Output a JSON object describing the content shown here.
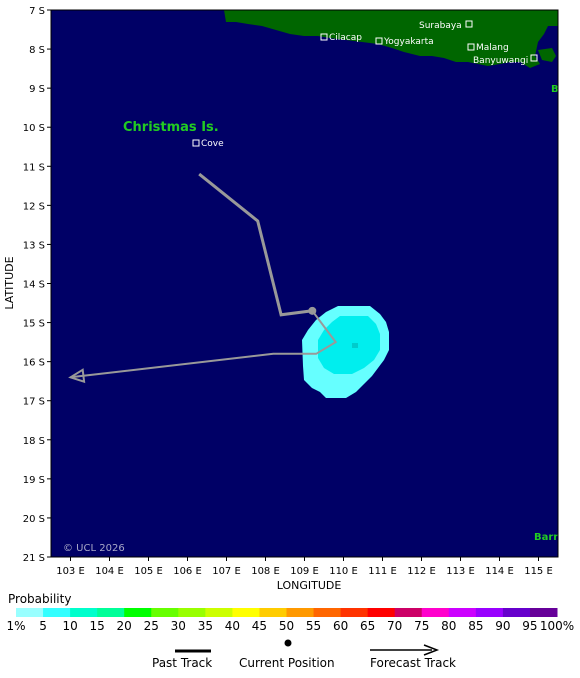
{
  "map": {
    "background_color": "#000066",
    "land_color": "#006600",
    "lon_range": [
      102.5,
      115.5
    ],
    "lat_range": [
      7,
      21
    ],
    "lon_ticks": [
      "103 E",
      "104 E",
      "105 E",
      "106 E",
      "107 E",
      "108 E",
      "109 E",
      "110 E",
      "111 E",
      "112 E",
      "113 E",
      "114 E",
      "115 E"
    ],
    "lat_ticks": [
      "7 S",
      "8 S",
      "9 S",
      "10 S",
      "11 S",
      "12 S",
      "13 S",
      "14 S",
      "15 S",
      "16 S",
      "17 S",
      "18 S",
      "19 S",
      "20 S",
      "21 S"
    ],
    "xlabel": "LONGITUDE",
    "ylabel": "LATITUDE",
    "copyright": "© UCL 2026",
    "island_label": "Christmas Is.",
    "cities": [
      {
        "name": "Surabaya"
      },
      {
        "name": "Cilacap"
      },
      {
        "name": "Yogyakarta"
      },
      {
        "name": "Malang"
      },
      {
        "name": "Banyuwangi"
      },
      {
        "name": "Cove"
      }
    ],
    "edge_labels": [
      {
        "text": "B"
      },
      {
        "text": "Barr"
      }
    ],
    "past_track": [
      [
        106.3,
        11.2
      ],
      [
        107.8,
        12.4
      ],
      [
        108.4,
        14.8
      ],
      [
        109.2,
        14.7
      ]
    ],
    "current_position": [
      109.2,
      14.7
    ],
    "forecast_track": [
      [
        109.2,
        14.7
      ],
      [
        109.8,
        15.5
      ],
      [
        109.3,
        15.8
      ],
      [
        108.2,
        15.8
      ],
      [
        103.0,
        16.4
      ]
    ],
    "probability_colors": {
      "outer": "#66ffff",
      "inner": "#00eeee",
      "core": "#00cccc"
    }
  },
  "legend": {
    "title": "Probability",
    "bins": [
      {
        "label": "1%",
        "color": "#99ffff"
      },
      {
        "label": "5",
        "color": "#33ffff"
      },
      {
        "label": "10",
        "color": "#00ffcc"
      },
      {
        "label": "15",
        "color": "#00ff99"
      },
      {
        "label": "20",
        "color": "#00ff00"
      },
      {
        "label": "25",
        "color": "#66ff00"
      },
      {
        "label": "30",
        "color": "#99ff00"
      },
      {
        "label": "35",
        "color": "#ccff00"
      },
      {
        "label": "40",
        "color": "#ffff00"
      },
      {
        "label": "45",
        "color": "#ffcc00"
      },
      {
        "label": "50",
        "color": "#ff9900"
      },
      {
        "label": "55",
        "color": "#ff6600"
      },
      {
        "label": "60",
        "color": "#ff3300"
      },
      {
        "label": "65",
        "color": "#ff0000"
      },
      {
        "label": "70",
        "color": "#cc0066"
      },
      {
        "label": "75",
        "color": "#ff00cc"
      },
      {
        "label": "80",
        "color": "#cc00ff"
      },
      {
        "label": "85",
        "color": "#9900ff"
      },
      {
        "label": "90",
        "color": "#6600cc"
      },
      {
        "label": "95",
        "color": "#660099"
      },
      {
        "label": "100%",
        "color": "#660066"
      }
    ],
    "past_track_label": "Past Track",
    "current_position_label": "Current Position",
    "forecast_track_label": "Forecast Track"
  }
}
